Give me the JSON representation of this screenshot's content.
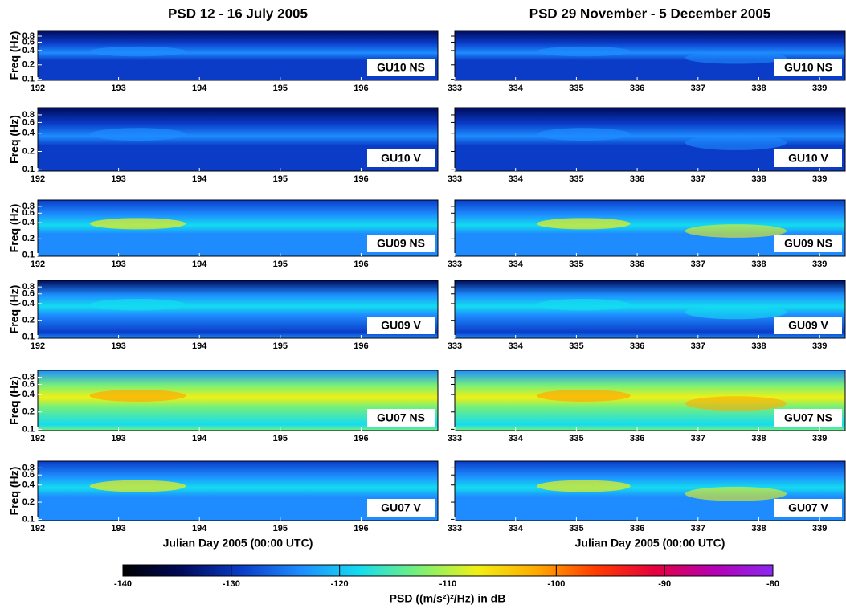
{
  "chart_data": {
    "type": "spectrogram",
    "titles": [
      "PSD 12 - 16 July 2005",
      "PSD 29 November - 5 December 2005"
    ],
    "y_label": "Freq (Hz)",
    "x_label": "Julian Day 2005 (00:00 UTC)",
    "log_y": true,
    "ylim": [
      0.095,
      1.05
    ],
    "yticks": [
      0.1,
      0.2,
      0.4,
      0.6,
      0.8
    ],
    "columns": [
      {
        "xlim": [
          192,
          196.95
        ],
        "xticks": [
          192,
          193,
          194,
          195,
          196
        ]
      },
      {
        "xlim": [
          333,
          339.42
        ],
        "xticks": [
          333,
          334,
          335,
          336,
          337,
          338,
          339
        ]
      }
    ],
    "panels": [
      "GU10 NS",
      "GU10 V",
      "GU09 NS",
      "GU09 V",
      "GU07 NS",
      "GU07 V"
    ],
    "colorbar": {
      "lim": [
        -140,
        -80
      ],
      "ticks": [
        -140,
        -130,
        -120,
        -110,
        -100,
        -90,
        -80
      ],
      "label": "PSD ((m/s²)²/Hz) in dB",
      "colormap": [
        "#000000",
        "#000a5a",
        "#0a3cc8",
        "#1e8cff",
        "#14dcf0",
        "#78f078",
        "#f0f014",
        "#ffaa00",
        "#ff3c00",
        "#e6003c",
        "#b400b4",
        "#8c28f0"
      ]
    }
  }
}
